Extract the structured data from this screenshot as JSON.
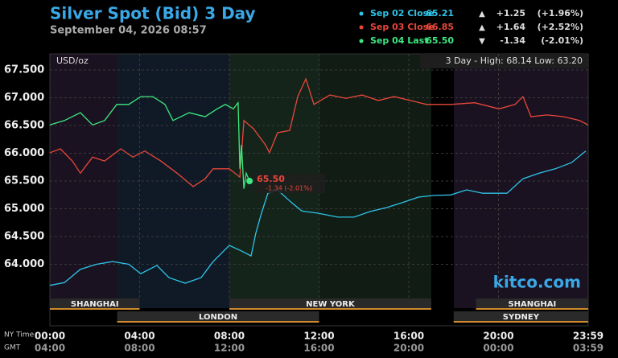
{
  "chart_data": {
    "type": "line",
    "title": "Silver Spot (Bid) 3 Day",
    "subtitle": "September 04, 2026 08:57",
    "unit": "USD/oz",
    "range_note": "3 Day - High: 68.14  Low: 63.20",
    "watermark": "kitco.com",
    "x_row_labels": [
      "NY Time",
      "GMT"
    ],
    "xlim": [
      0,
      24
    ],
    "ylim": [
      63.2,
      67.8
    ],
    "grid": true,
    "yticks": [
      {
        "value": 64,
        "label": "64.000"
      },
      {
        "value": 64.5,
        "label": "64.500"
      },
      {
        "value": 65,
        "label": "65.000"
      },
      {
        "value": 65.5,
        "label": "65.500"
      },
      {
        "value": 66,
        "label": "66.000"
      },
      {
        "value": 66.5,
        "label": "66.500"
      },
      {
        "value": 67,
        "label": "67.000"
      },
      {
        "value": 67.5,
        "label": "67.500"
      }
    ],
    "xticks": [
      {
        "value": 0,
        "label": "00:00"
      },
      {
        "value": 4,
        "label": "04:00"
      },
      {
        "value": 8,
        "label": "08:00"
      },
      {
        "value": 12,
        "label": "12:00"
      },
      {
        "value": 16,
        "label": "16:00"
      },
      {
        "value": 20,
        "label": "20:00"
      },
      {
        "value": 24,
        "label": "23:59"
      }
    ],
    "xticks_gmt": [
      "04:00",
      "08:00",
      "12:00",
      "16:00",
      "20:00",
      "00:00",
      "03:59"
    ],
    "sessions": [
      {
        "name": "SHANGHAI",
        "start": 0,
        "end": 4,
        "row": 0
      },
      {
        "name": "NEW YORK",
        "start": 8,
        "end": 17,
        "row": 0
      },
      {
        "name": "SHANGHAI",
        "start": 19,
        "end": 24,
        "row": 0
      },
      {
        "name": "LONDON",
        "start": 3,
        "end": 12,
        "row": 1
      },
      {
        "name": "SYDNEY",
        "start": 18,
        "end": 24,
        "row": 1
      }
    ],
    "series": [
      {
        "name": "Sep 02 Close",
        "color": "#2ec4e8",
        "last": "65.21",
        "arrow": "▲",
        "change": "+1.25",
        "change_pct": "(+1.96%)",
        "x": [
          0,
          0.65,
          1.36,
          2.08,
          2.8,
          3.52,
          4.05,
          4.77,
          5.31,
          6.03,
          6.74,
          7.28,
          8.0,
          8.54,
          8.97,
          9.18,
          9.43,
          9.72,
          10.15,
          10.69,
          11.23,
          11.95,
          12.84,
          13.56,
          14.28,
          15.0,
          15.71,
          16.43,
          17.15,
          17.87,
          18.58,
          19.3,
          20.38,
          21.09,
          21.81,
          22.53,
          23.25,
          23.89
        ],
        "values": [
          63.62,
          63.67,
          63.91,
          64.0,
          64.05,
          64.0,
          63.83,
          63.98,
          63.76,
          63.66,
          63.76,
          64.05,
          64.34,
          64.24,
          64.15,
          64.56,
          64.92,
          65.28,
          65.34,
          65.14,
          64.96,
          64.92,
          64.85,
          64.85,
          64.95,
          65.02,
          65.11,
          65.21,
          65.24,
          65.25,
          65.34,
          65.28,
          65.28,
          65.54,
          65.64,
          65.72,
          65.83,
          66.04
        ]
      },
      {
        "name": "Sep 03 Close",
        "color": "#e8473a",
        "last": "66.85",
        "arrow": "▲",
        "change": "+1.64",
        "change_pct": "(+2.52%)",
        "x": [
          0,
          0.47,
          1.0,
          1.36,
          1.9,
          2.44,
          3.16,
          3.7,
          4.23,
          4.95,
          5.67,
          6.39,
          6.92,
          7.28,
          8.0,
          8.47,
          8.65,
          9.08,
          9.61,
          9.79,
          10.15,
          10.69,
          11.05,
          11.41,
          11.77,
          12.48,
          13.2,
          13.92,
          14.64,
          15.35,
          16.07,
          16.79,
          17.87,
          18.94,
          20.02,
          20.74,
          21.09,
          21.45,
          22.17,
          22.89,
          23.61,
          24.0
        ],
        "values": [
          66.01,
          66.08,
          65.86,
          65.64,
          65.93,
          65.86,
          66.08,
          65.93,
          66.04,
          65.86,
          65.64,
          65.4,
          65.54,
          65.72,
          65.72,
          65.57,
          66.59,
          66.44,
          66.15,
          66.01,
          66.37,
          66.41,
          67.02,
          67.34,
          66.88,
          67.05,
          66.99,
          67.05,
          66.95,
          67.02,
          66.95,
          66.88,
          66.88,
          66.91,
          66.8,
          66.88,
          67.02,
          66.66,
          66.69,
          66.66,
          66.59,
          66.51
        ]
      },
      {
        "name": "Sep 04 Last",
        "color": "#3ee882",
        "last": "65.50",
        "arrow": "▼",
        "change": "-1.34",
        "change_pct": "(-2.01%)",
        "x": [
          0,
          0.65,
          1.36,
          1.9,
          2.44,
          2.98,
          3.52,
          4.05,
          4.59,
          5.13,
          5.49,
          6.21,
          6.92,
          7.46,
          7.82,
          8.18,
          8.39,
          8.47,
          8.54,
          8.65,
          8.75,
          8.9
        ],
        "values": [
          66.51,
          66.59,
          66.73,
          66.51,
          66.59,
          66.88,
          66.88,
          67.02,
          67.02,
          66.88,
          66.59,
          66.73,
          66.66,
          66.8,
          66.88,
          66.8,
          66.91,
          65.72,
          66.15,
          65.36,
          65.64,
          65.5
        ]
      }
    ],
    "current": {
      "label": "65.50",
      "change": "-1.34 (-2.01%)"
    }
  }
}
